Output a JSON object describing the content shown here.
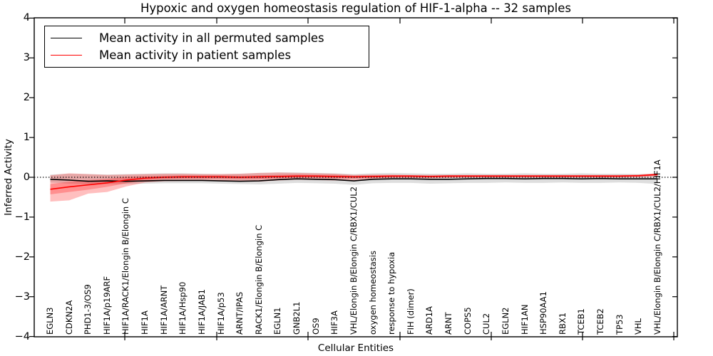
{
  "title": "Hypoxic and oxygen homeostasis regulation of HIF-1-alpha -- 32 samples",
  "axes": {
    "xlabel": "Cellular Entities",
    "ylabel": "Inferred Activity",
    "ytick_labels": [
      "4",
      "3",
      "2",
      "1",
      "0",
      "−1",
      "−2",
      "−3",
      "−4"
    ]
  },
  "legend": {
    "items": [
      {
        "label": "Mean activity in all permuted samples",
        "color": "#000000"
      },
      {
        "label": "Mean activity in patient samples",
        "color": "#ff0000"
      }
    ]
  },
  "chart_data": {
    "type": "line",
    "title": "Hypoxic and oxygen homeostasis regulation of HIF-1-alpha -- 32 samples",
    "xlabel": "Cellular Entities",
    "ylabel": "Inferred Activity",
    "ylim": [
      -4,
      4
    ],
    "ytick_values": [
      4,
      3,
      2,
      1,
      0,
      -1,
      -2,
      -3,
      -4
    ],
    "grid": false,
    "legend_position": "upper-left",
    "zero_line": {
      "style": "dotted",
      "color": "#000000",
      "y": 0
    },
    "categories": [
      "EGLN3",
      "CDKN2A",
      "PHD1-3/OS9",
      "HIF1A/p19ARF",
      "HIF1A/RACK1/Elongin B/Elongin C",
      "HIF1A",
      "HIF1A/ARNT",
      "HIF1A/Hsp90",
      "HIF1A/JAB1",
      "HIF1A/p53",
      "ARNT/IPAS",
      "RACK1/Elongin B/Elongin C",
      "EGLN1",
      "GNB2L1",
      "OS9",
      "HIF3A",
      "VHL/Elongin B/Elongin C/RBX1/CUL2",
      "oxygen homeostasis",
      "response to hypoxia",
      "FIH (dimer)",
      "ARD1A",
      "ARNT",
      "COPS5",
      "CUL2",
      "EGLN2",
      "HIF1AN",
      "HSP90AA1",
      "RBX1",
      "TCEB1",
      "TCEB2",
      "TP53",
      "VHL",
      "VHL/Elongin B/Elongin C/RBX1/CUL2/HIF1A"
    ],
    "series": [
      {
        "name": "Mean activity in all permuted samples",
        "color": "#000000",
        "values": [
          -0.05,
          -0.07,
          -0.1,
          -0.09,
          -0.1,
          -0.09,
          -0.08,
          -0.08,
          -0.08,
          -0.09,
          -0.1,
          -0.09,
          -0.06,
          -0.04,
          -0.05,
          -0.06,
          -0.09,
          -0.05,
          -0.04,
          -0.04,
          -0.05,
          -0.05,
          -0.04,
          -0.03,
          -0.03,
          -0.04,
          -0.03,
          -0.03,
          -0.04,
          -0.03,
          -0.04,
          -0.04,
          -0.04
        ]
      },
      {
        "name": "Mean activity in patient samples",
        "color": "#ff0000",
        "values": [
          -0.3,
          -0.24,
          -0.19,
          -0.14,
          -0.07,
          -0.02,
          0.0,
          0.01,
          0.01,
          0.01,
          0.0,
          0.01,
          0.02,
          0.03,
          0.03,
          0.02,
          0.01,
          0.02,
          0.03,
          0.03,
          0.02,
          0.03,
          0.03,
          0.03,
          0.03,
          0.03,
          0.03,
          0.03,
          0.03,
          0.03,
          0.03,
          0.04,
          0.07
        ]
      }
    ],
    "bands": [
      {
        "name": "permuted-samples-range",
        "color": "#000000",
        "opacity": 0.13,
        "upper": [
          0.07,
          0.09,
          0.08,
          0.07,
          0.08,
          0.09,
          0.1,
          0.1,
          0.09,
          0.08,
          0.09,
          0.11,
          0.12,
          0.12,
          0.11,
          0.1,
          0.08,
          0.1,
          0.11,
          0.1,
          0.09,
          0.09,
          0.1,
          0.09,
          0.09,
          0.1,
          0.09,
          0.09,
          0.1,
          0.09,
          0.09,
          0.08,
          0.09
        ],
        "lower": [
          -0.13,
          -0.16,
          -0.18,
          -0.17,
          -0.17,
          -0.16,
          -0.15,
          -0.15,
          -0.15,
          -0.16,
          -0.17,
          -0.18,
          -0.16,
          -0.14,
          -0.15,
          -0.16,
          -0.19,
          -0.15,
          -0.14,
          -0.14,
          -0.16,
          -0.15,
          -0.14,
          -0.14,
          -0.13,
          -0.14,
          -0.14,
          -0.13,
          -0.14,
          -0.14,
          -0.13,
          -0.14,
          -0.17
        ]
      },
      {
        "name": "patient-samples-range-outer",
        "color": "#ff0000",
        "opacity": 0.25,
        "upper": [
          0.05,
          0.1,
          0.08,
          0.06,
          0.07,
          0.08,
          0.09,
          0.09,
          0.08,
          0.08,
          0.09,
          0.11,
          0.12,
          0.11,
          0.1,
          0.09,
          0.06,
          0.07,
          0.07,
          0.06,
          0.06,
          0.06,
          0.06,
          0.06,
          0.06,
          0.06,
          0.06,
          0.06,
          0.06,
          0.06,
          0.06,
          0.07,
          0.1
        ],
        "lower": [
          -0.61,
          -0.58,
          -0.41,
          -0.37,
          -0.23,
          -0.13,
          -0.1,
          -0.09,
          -0.09,
          -0.1,
          -0.11,
          -0.11,
          -0.08,
          -0.06,
          -0.07,
          -0.08,
          -0.09,
          -0.04,
          -0.02,
          -0.02,
          -0.03,
          -0.02,
          -0.01,
          -0.01,
          -0.01,
          -0.01,
          -0.01,
          -0.01,
          -0.01,
          -0.01,
          -0.01,
          0.0,
          0.02
        ]
      },
      {
        "name": "patient-samples-range-inner",
        "color": "#ff0000",
        "opacity": 0.25,
        "upper": [
          -0.17,
          -0.11,
          -0.07,
          -0.04,
          0.01,
          0.03,
          0.04,
          0.05,
          0.05,
          0.05,
          0.04,
          0.05,
          0.06,
          0.07,
          0.06,
          0.06,
          0.04,
          0.05,
          0.05,
          0.05,
          0.04,
          0.05,
          0.05,
          0.05,
          0.05,
          0.05,
          0.05,
          0.05,
          0.05,
          0.05,
          0.05,
          0.06,
          0.09
        ],
        "lower": [
          -0.43,
          -0.37,
          -0.31,
          -0.24,
          -0.15,
          -0.08,
          -0.04,
          -0.03,
          -0.03,
          -0.03,
          -0.04,
          -0.04,
          -0.02,
          -0.01,
          -0.01,
          -0.02,
          -0.02,
          -0.01,
          0.01,
          0.01,
          0.0,
          0.01,
          0.01,
          0.01,
          0.01,
          0.01,
          0.01,
          0.01,
          0.01,
          0.01,
          0.01,
          0.02,
          0.05
        ]
      }
    ]
  }
}
